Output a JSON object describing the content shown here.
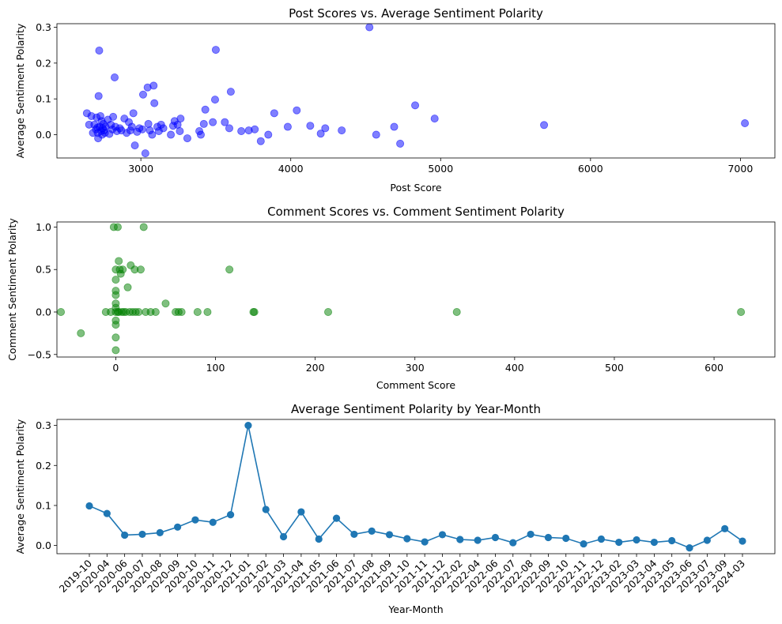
{
  "chart_data": [
    {
      "type": "scatter",
      "title": "Post Scores vs. Average Sentiment Polarity",
      "xlabel": "Post Score",
      "ylabel": "Average Sentiment Polarity",
      "xlim": [
        2440,
        7230
      ],
      "ylim": [
        -0.065,
        0.31
      ],
      "xticks": [
        3000,
        4000,
        5000,
        6000,
        7000
      ],
      "xtick_labels": [
        "3000",
        "4000",
        "5000",
        "6000",
        "7000"
      ],
      "yticks": [
        0.0,
        0.1,
        0.2,
        0.3
      ],
      "ytick_labels": [
        "0.0",
        "0.1",
        "0.2",
        "0.3"
      ],
      "grid": false,
      "marker_color": "#0000ff",
      "points": [
        [
          2640,
          0.06
        ],
        [
          2655,
          0.028
        ],
        [
          2670,
          0.052
        ],
        [
          2680,
          0.005
        ],
        [
          2690,
          0.028
        ],
        [
          2700,
          0.015
        ],
        [
          2705,
          0.048
        ],
        [
          2710,
          0.02
        ],
        [
          2712,
          0.005
        ],
        [
          2715,
          -0.01
        ],
        [
          2718,
          0.108
        ],
        [
          2722,
          0.235
        ],
        [
          2725,
          0.022
        ],
        [
          2730,
          0.052
        ],
        [
          2735,
          0.01
        ],
        [
          2738,
          0.038
        ],
        [
          2742,
          0.0
        ],
        [
          2745,
          0.018
        ],
        [
          2750,
          0.03
        ],
        [
          2755,
          0.012
        ],
        [
          2760,
          0.005
        ],
        [
          2765,
          0.022
        ],
        [
          2780,
          0.042
        ],
        [
          2790,
          0.002
        ],
        [
          2800,
          0.028
        ],
        [
          2810,
          0.015
        ],
        [
          2815,
          0.05
        ],
        [
          2825,
          0.16
        ],
        [
          2830,
          0.022
        ],
        [
          2840,
          0.01
        ],
        [
          2860,
          0.018
        ],
        [
          2870,
          0.012
        ],
        [
          2890,
          0.045
        ],
        [
          2905,
          0.005
        ],
        [
          2920,
          0.035
        ],
        [
          2930,
          0.012
        ],
        [
          2940,
          0.022
        ],
        [
          2950,
          0.06
        ],
        [
          2960,
          -0.03
        ],
        [
          2975,
          0.008
        ],
        [
          2990,
          0.018
        ],
        [
          3010,
          0.015
        ],
        [
          3015,
          0.112
        ],
        [
          3030,
          -0.052
        ],
        [
          3045,
          0.132
        ],
        [
          3050,
          0.03
        ],
        [
          3060,
          0.012
        ],
        [
          3075,
          0.0
        ],
        [
          3085,
          0.137
        ],
        [
          3090,
          0.088
        ],
        [
          3110,
          0.022
        ],
        [
          3120,
          0.01
        ],
        [
          3135,
          0.028
        ],
        [
          3150,
          0.018
        ],
        [
          3200,
          0.0
        ],
        [
          3215,
          0.025
        ],
        [
          3225,
          0.038
        ],
        [
          3245,
          0.028
        ],
        [
          3260,
          0.01
        ],
        [
          3265,
          0.045
        ],
        [
          3310,
          -0.01
        ],
        [
          3390,
          0.01
        ],
        [
          3400,
          0.0
        ],
        [
          3420,
          0.03
        ],
        [
          3430,
          0.07
        ],
        [
          3480,
          0.035
        ],
        [
          3495,
          0.098
        ],
        [
          3500,
          0.237
        ],
        [
          3560,
          0.035
        ],
        [
          3590,
          0.018
        ],
        [
          3600,
          0.12
        ],
        [
          3670,
          0.01
        ],
        [
          3720,
          0.012
        ],
        [
          3760,
          0.015
        ],
        [
          3800,
          -0.018
        ],
        [
          3850,
          0.0
        ],
        [
          3890,
          0.06
        ],
        [
          3980,
          0.022
        ],
        [
          4040,
          0.068
        ],
        [
          4130,
          0.025
        ],
        [
          4200,
          0.003
        ],
        [
          4230,
          0.018
        ],
        [
          4340,
          0.012
        ],
        [
          4525,
          0.3
        ],
        [
          4570,
          0.0
        ],
        [
          4690,
          0.022
        ],
        [
          4730,
          -0.025
        ],
        [
          4830,
          0.082
        ],
        [
          4960,
          0.045
        ],
        [
          5690,
          0.027
        ],
        [
          7030,
          0.032
        ]
      ]
    },
    {
      "type": "scatter",
      "title": "Comment Scores vs. Comment Sentiment Polarity",
      "xlabel": "Comment Score",
      "ylabel": "Comment Sentiment Polarity",
      "xlim": [
        -59,
        661
      ],
      "ylim": [
        -0.53,
        1.06
      ],
      "xticks": [
        0,
        100,
        200,
        300,
        400,
        500,
        600
      ],
      "xtick_labels": [
        "0",
        "100",
        "200",
        "300",
        "400",
        "500",
        "600"
      ],
      "yticks": [
        -0.5,
        0.0,
        0.5,
        1.0
      ],
      "ytick_labels": [
        "−0.5",
        "0.0",
        "0.5",
        "1.0"
      ],
      "grid": false,
      "marker_color": "#008000",
      "points": [
        [
          -55,
          0.0
        ],
        [
          -35,
          -0.25
        ],
        [
          -10,
          0.0
        ],
        [
          -5,
          0.0
        ],
        [
          -2,
          1.0
        ],
        [
          0,
          -0.45
        ],
        [
          0,
          -0.3
        ],
        [
          0,
          -0.15
        ],
        [
          0,
          -0.1
        ],
        [
          0,
          0.0
        ],
        [
          0,
          0.05
        ],
        [
          0,
          0.1
        ],
        [
          0,
          0.2
        ],
        [
          0,
          0.25
        ],
        [
          0,
          0.38
        ],
        [
          0,
          0.5
        ],
        [
          2,
          1.0
        ],
        [
          2,
          0.0
        ],
        [
          3,
          0.6
        ],
        [
          3,
          0.0
        ],
        [
          4,
          0.5
        ],
        [
          5,
          0.45
        ],
        [
          6,
          0.0
        ],
        [
          7,
          0.5
        ],
        [
          8,
          0.0
        ],
        [
          10,
          0.0
        ],
        [
          12,
          0.29
        ],
        [
          14,
          0.0
        ],
        [
          15,
          0.55
        ],
        [
          17,
          0.0
        ],
        [
          19,
          0.5
        ],
        [
          20,
          0.0
        ],
        [
          23,
          0.0
        ],
        [
          25,
          0.5
        ],
        [
          28,
          1.0
        ],
        [
          30,
          0.0
        ],
        [
          35,
          0.0
        ],
        [
          40,
          0.0
        ],
        [
          50,
          0.1
        ],
        [
          60,
          0.0
        ],
        [
          63,
          0.0
        ],
        [
          66,
          0.0
        ],
        [
          82,
          0.0
        ],
        [
          92,
          0.0
        ],
        [
          114,
          0.5
        ],
        [
          138,
          0.0
        ],
        [
          139,
          0.0
        ],
        [
          213,
          0.0
        ],
        [
          342,
          0.0
        ],
        [
          627,
          0.0
        ]
      ]
    },
    {
      "type": "line",
      "title": "Average Sentiment Polarity by Year-Month",
      "xlabel": "Year-Month",
      "ylabel": "Average Sentiment Polarity",
      "ylim": [
        -0.0205,
        0.315
      ],
      "yticks": [
        0.0,
        0.1,
        0.2,
        0.3
      ],
      "ytick_labels": [
        "0.0",
        "0.1",
        "0.2",
        "0.3"
      ],
      "grid": false,
      "line_color": "#1f77b4",
      "categories": [
        "2019-10",
        "2020-04",
        "2020-06",
        "2020-07",
        "2020-08",
        "2020-09",
        "2020-10",
        "2020-11",
        "2020-12",
        "2021-01",
        "2021-02",
        "2021-03",
        "2021-04",
        "2021-05",
        "2021-06",
        "2021-07",
        "2021-08",
        "2021-09",
        "2021-10",
        "2021-11",
        "2021-12",
        "2022-02",
        "2022-04",
        "2022-06",
        "2022-07",
        "2022-08",
        "2022-09",
        "2022-10",
        "2022-11",
        "2022-12",
        "2023-02",
        "2023-03",
        "2023-04",
        "2023-05",
        "2023-06",
        "2023-07",
        "2023-09",
        "2024-03"
      ],
      "values": [
        0.099,
        0.08,
        0.026,
        0.028,
        0.032,
        0.046,
        0.064,
        0.058,
        0.077,
        0.3,
        0.09,
        0.022,
        0.084,
        0.016,
        0.068,
        0.028,
        0.036,
        0.027,
        0.017,
        0.009,
        0.027,
        0.015,
        0.013,
        0.02,
        0.007,
        0.028,
        0.02,
        0.018,
        0.004,
        0.016,
        0.008,
        0.014,
        0.008,
        0.012,
        -0.006,
        0.013,
        0.042,
        0.011
      ]
    }
  ]
}
